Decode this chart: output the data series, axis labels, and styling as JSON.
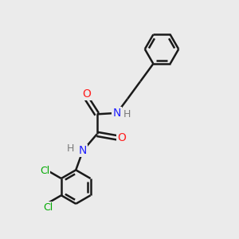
{
  "background_color": "#ebebeb",
  "bond_color": "#1a1a1a",
  "N_color": "#2020ff",
  "O_color": "#ff2020",
  "Cl_color": "#00aa00",
  "H_color": "#7a7a7a",
  "line_width": 1.8,
  "figsize": [
    3.0,
    3.0
  ],
  "dpi": 100,
  "xlim": [
    0,
    10
  ],
  "ylim": [
    0,
    10
  ]
}
